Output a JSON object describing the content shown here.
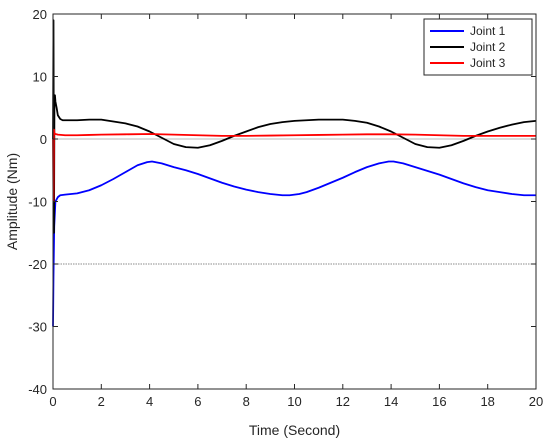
{
  "chart_data": {
    "type": "line",
    "title": "",
    "xlabel": "Time (Second)",
    "ylabel": "Amplitude (Nm)",
    "xlim": [
      0,
      20
    ],
    "ylim": [
      -40,
      20
    ],
    "xticks": [
      0,
      2,
      4,
      6,
      8,
      10,
      12,
      14,
      16,
      18,
      20
    ],
    "yticks": [
      -40,
      -30,
      -20,
      -10,
      0,
      10,
      20
    ],
    "grid": false,
    "reference_lines": [
      0,
      -20
    ],
    "legend_position": "top-right",
    "series": [
      {
        "name": "Joint 1",
        "color": "#0000ff",
        "x": [
          0,
          0.02,
          0.05,
          0.1,
          0.2,
          0.3,
          0.5,
          1,
          1.5,
          2,
          2.5,
          3,
          3.5,
          3.9,
          4.1,
          4.5,
          5,
          5.5,
          6,
          6.5,
          7,
          7.5,
          8,
          8.5,
          9,
          9.5,
          9.8,
          10.2,
          10.5,
          11,
          11.5,
          12,
          12.5,
          13,
          13.5,
          13.9,
          14.1,
          14.5,
          15,
          15.5,
          16,
          16.5,
          17,
          17.5,
          18,
          18.5,
          19,
          19.5,
          19.8,
          20
        ],
        "values": [
          -30,
          -22,
          -14,
          -10,
          -9.3,
          -9,
          -8.9,
          -8.7,
          -8.2,
          -7.4,
          -6.4,
          -5.3,
          -4.2,
          -3.7,
          -3.6,
          -3.9,
          -4.5,
          -5.0,
          -5.6,
          -6.3,
          -7.0,
          -7.6,
          -8.1,
          -8.5,
          -8.8,
          -9.0,
          -9.0,
          -8.8,
          -8.5,
          -7.8,
          -7.0,
          -6.2,
          -5.3,
          -4.5,
          -3.9,
          -3.6,
          -3.6,
          -3.9,
          -4.5,
          -5.1,
          -5.7,
          -6.4,
          -7.1,
          -7.7,
          -8.2,
          -8.5,
          -8.8,
          -9.0,
          -9.0,
          -9.0
        ]
      },
      {
        "name": "Joint 2",
        "color": "#000000",
        "x": [
          0,
          0.02,
          0.04,
          0.06,
          0.08,
          0.1,
          0.15,
          0.2,
          0.3,
          0.4,
          0.5,
          1,
          1.5,
          2,
          2.5,
          3,
          3.5,
          4,
          4.5,
          5,
          5.5,
          6,
          6.5,
          7,
          7.5,
          8,
          8.5,
          9,
          9.5,
          10,
          10.5,
          11,
          11.5,
          12,
          12.5,
          13,
          13.5,
          14,
          14.5,
          15,
          15.5,
          16,
          16.5,
          17,
          17.5,
          18,
          18.5,
          19,
          19.5,
          20
        ],
        "values": [
          0,
          19,
          -15,
          7,
          7,
          6,
          5,
          3.8,
          3.2,
          3.0,
          3.0,
          3.0,
          3.1,
          3.1,
          2.8,
          2.5,
          2.0,
          1.2,
          0.2,
          -0.8,
          -1.3,
          -1.4,
          -1.0,
          -0.3,
          0.5,
          1.2,
          1.9,
          2.4,
          2.7,
          2.9,
          3.0,
          3.1,
          3.1,
          3.1,
          2.9,
          2.6,
          2.0,
          1.2,
          0.2,
          -0.8,
          -1.3,
          -1.4,
          -1.0,
          -0.3,
          0.5,
          1.2,
          1.8,
          2.3,
          2.7,
          2.9
        ]
      },
      {
        "name": "Joint 3",
        "color": "#ff0000",
        "x": [
          0,
          0.02,
          0.04,
          0.06,
          0.1,
          0.2,
          0.5,
          1,
          1.5,
          2,
          3,
          4,
          5,
          6,
          7,
          8,
          9,
          10,
          11,
          12,
          13,
          14,
          15,
          16,
          17,
          18,
          19,
          20
        ],
        "values": [
          0,
          -10,
          1.5,
          0.9,
          0.8,
          0.7,
          0.6,
          0.6,
          0.65,
          0.7,
          0.75,
          0.8,
          0.7,
          0.6,
          0.5,
          0.5,
          0.55,
          0.6,
          0.65,
          0.7,
          0.75,
          0.75,
          0.7,
          0.6,
          0.5,
          0.5,
          0.5,
          0.5
        ]
      }
    ]
  }
}
